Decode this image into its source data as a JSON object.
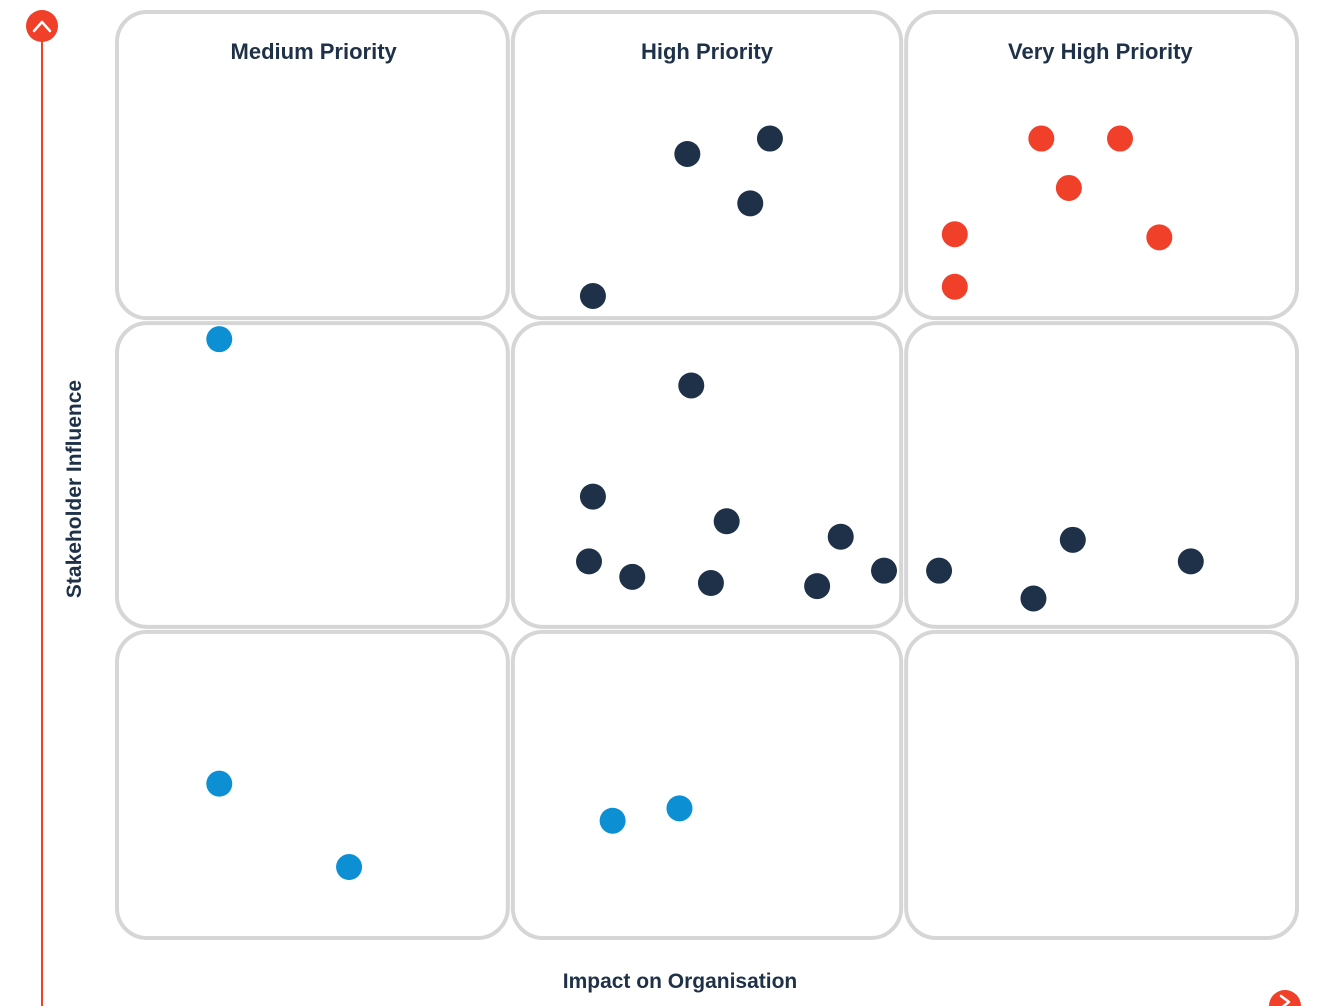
{
  "chart_data": {
    "type": "scatter",
    "title": "",
    "xlabel": "Impact on Organisation",
    "ylabel": "Stakeholder Influence",
    "xlim": [
      0,
      3
    ],
    "ylim": [
      0,
      3
    ],
    "grid": "3x3",
    "column_headings": [
      "Medium Priority",
      "High Priority",
      "Very High Priority"
    ],
    "colors": {
      "axis": "#f0402a",
      "grid_border": "#d6d6d6",
      "heading_text": "#1e3148"
    },
    "series": [
      {
        "color": "#f0402a",
        "points": [
          {
            "x": 2.35,
            "y": 2.59
          },
          {
            "x": 2.55,
            "y": 2.59
          },
          {
            "x": 2.42,
            "y": 2.43
          },
          {
            "x": 2.13,
            "y": 2.28
          },
          {
            "x": 2.65,
            "y": 2.27
          },
          {
            "x": 2.13,
            "y": 2.11
          }
        ]
      },
      {
        "color": "#1e3148",
        "points": [
          {
            "x": 1.45,
            "y": 2.54
          },
          {
            "x": 1.66,
            "y": 2.59
          },
          {
            "x": 1.61,
            "y": 2.38
          },
          {
            "x": 1.21,
            "y": 2.08
          },
          {
            "x": 1.46,
            "y": 1.79
          },
          {
            "x": 1.21,
            "y": 1.43
          },
          {
            "x": 1.55,
            "y": 1.35
          },
          {
            "x": 1.2,
            "y": 1.22
          },
          {
            "x": 1.31,
            "y": 1.17
          },
          {
            "x": 1.51,
            "y": 1.15
          },
          {
            "x": 1.78,
            "y": 1.14
          },
          {
            "x": 1.84,
            "y": 1.3
          },
          {
            "x": 1.95,
            "y": 1.19
          },
          {
            "x": 2.09,
            "y": 1.19
          },
          {
            "x": 2.33,
            "y": 1.1
          },
          {
            "x": 2.43,
            "y": 1.29
          },
          {
            "x": 2.73,
            "y": 1.22
          }
        ]
      },
      {
        "color": "#0d8fd4",
        "points": [
          {
            "x": 0.26,
            "y": 1.94
          },
          {
            "x": 0.26,
            "y": 0.5
          },
          {
            "x": 0.59,
            "y": 0.23
          },
          {
            "x": 1.26,
            "y": 0.38
          },
          {
            "x": 1.43,
            "y": 0.42
          }
        ]
      }
    ]
  }
}
